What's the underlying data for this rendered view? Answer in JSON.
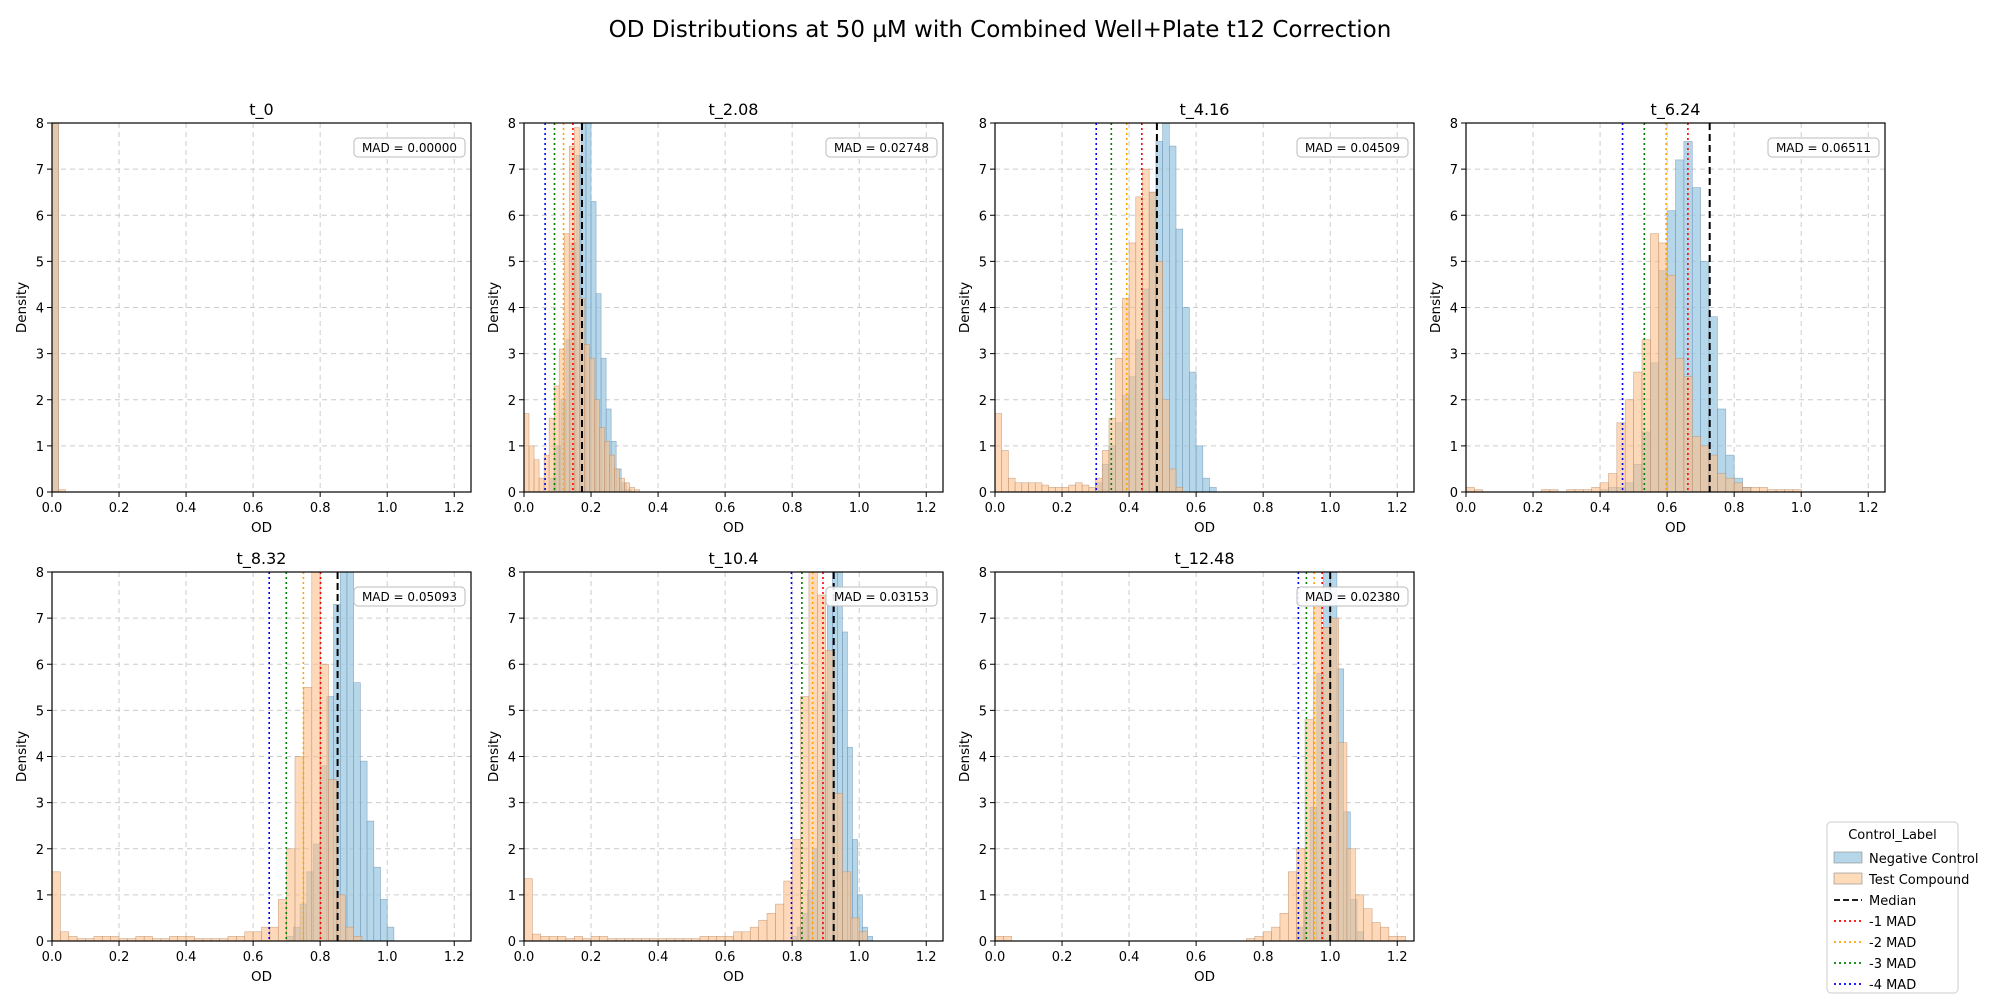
{
  "figure": {
    "title": "OD Distributions at 50 µM with Combined Well+Plate t12 Correction"
  },
  "legend": {
    "title": "Control_Label",
    "entries": [
      {
        "label": "Negative Control",
        "kind": "patch",
        "color": "#9ecae1"
      },
      {
        "label": "Test Compound",
        "kind": "patch",
        "color": "#fdd0a2"
      },
      {
        "label": "Median",
        "kind": "line",
        "color": "#000000",
        "dash": "dashed"
      },
      {
        "label": "-1 MAD",
        "kind": "line",
        "color": "#ff0000",
        "dash": "dotted"
      },
      {
        "label": "-2 MAD",
        "kind": "line",
        "color": "#ffa500",
        "dash": "dotted"
      },
      {
        "label": "-3 MAD",
        "kind": "line",
        "color": "#008000",
        "dash": "dotted"
      },
      {
        "label": "-4 MAD",
        "kind": "line",
        "color": "#0000ff",
        "dash": "dotted"
      }
    ]
  },
  "colors": {
    "negative_fill": "#9ecae1",
    "negative_edge": "#6a8fb0",
    "test_fill": "#fdbf8a",
    "test_edge": "#b98a66",
    "overlap": "#c2ab97",
    "grid": "#cccccc"
  },
  "chart_data": [
    {
      "type": "histogram",
      "title": "t_0",
      "xlabel": "OD",
      "ylabel": "Density",
      "xlim": [
        0,
        1.25
      ],
      "ylim": [
        0,
        8
      ],
      "grid": true,
      "xticks": [
        "0.0",
        "0.2",
        "0.4",
        "0.6",
        "0.8",
        "1.0",
        "1.2"
      ],
      "yticks": [
        "0",
        "1",
        "2",
        "3",
        "4",
        "5",
        "6",
        "7",
        "8"
      ],
      "mad_label": "MAD = 0.00000",
      "median": null,
      "mad_lines": [],
      "negative": {
        "bins": [
          [
            0.0,
            0.02,
            9.0
          ]
        ]
      },
      "test": {
        "bins": [
          [
            0.0,
            0.02,
            9.0
          ],
          [
            0.02,
            0.04,
            0.05
          ]
        ]
      }
    },
    {
      "type": "histogram",
      "title": "t_2.08",
      "xlabel": "OD",
      "ylabel": "Density",
      "xlim": [
        0,
        1.25
      ],
      "ylim": [
        0,
        8
      ],
      "grid": true,
      "xticks": [
        "0.0",
        "0.2",
        "0.4",
        "0.6",
        "0.8",
        "1.0",
        "1.2"
      ],
      "yticks": [
        "0",
        "1",
        "2",
        "3",
        "4",
        "5",
        "6",
        "7",
        "8"
      ],
      "mad_label": "MAD = 0.02748",
      "median": 0.173,
      "mad_lines": [
        0.146,
        0.118,
        0.091,
        0.063
      ],
      "negative": {
        "start": 0.08,
        "width": 0.015,
        "values": [
          0.3,
          1.0,
          2.0,
          3.3,
          5.4,
          7.3,
          8.0,
          8.0,
          6.3,
          4.3,
          2.9,
          1.8,
          1.1,
          0.5,
          0.2,
          0.05
        ]
      },
      "test": {
        "start": 0.0,
        "width": 0.015,
        "values": [
          1.7,
          1.0,
          0.7,
          0.3,
          0.8,
          1.6,
          2.3,
          3.1,
          5.6,
          7.5,
          7.9,
          4.2,
          3.2,
          2.9,
          2.0,
          1.4,
          1.1,
          0.8,
          0.5,
          0.3,
          0.2,
          0.1,
          0.05
        ]
      }
    },
    {
      "type": "histogram",
      "title": "t_4.16",
      "xlabel": "OD",
      "ylabel": "Density",
      "xlim": [
        0,
        1.25
      ],
      "ylim": [
        0,
        8
      ],
      "grid": true,
      "xticks": [
        "0.0",
        "0.2",
        "0.4",
        "0.6",
        "0.8",
        "1.0",
        "1.2"
      ],
      "yticks": [
        "0",
        "1",
        "2",
        "3",
        "4",
        "5",
        "6",
        "7",
        "8"
      ],
      "mad_label": "MAD = 0.04509",
      "median": 0.483,
      "mad_lines": [
        0.438,
        0.393,
        0.347,
        0.302
      ],
      "negative": {
        "start": 0.3,
        "width": 0.02,
        "values": [
          0.2,
          0.6,
          1.0,
          1.5,
          2.1,
          2.5,
          3.3,
          4.4,
          6.5,
          7.6,
          8.0,
          7.5,
          5.7,
          4.0,
          2.6,
          1.0,
          0.3,
          0.1
        ]
      },
      "test": {
        "start": 0.0,
        "width": 0.02,
        "values": [
          1.7,
          0.9,
          0.3,
          0.2,
          0.2,
          0.2,
          0.2,
          0.15,
          0.1,
          0.1,
          0.1,
          0.15,
          0.2,
          0.15,
          0.1,
          0.3,
          0.9,
          1.6,
          2.9,
          4.2,
          5.4,
          6.4,
          7.0,
          6.5,
          5.0,
          2.0,
          0.5,
          0.1
        ]
      }
    },
    {
      "type": "histogram",
      "title": "t_6.24",
      "xlabel": "OD",
      "ylabel": "Density",
      "xlim": [
        0,
        1.25
      ],
      "ylim": [
        0,
        8
      ],
      "grid": true,
      "xticks": [
        "0.0",
        "0.2",
        "0.4",
        "0.6",
        "0.8",
        "1.0",
        "1.2"
      ],
      "yticks": [
        "0",
        "1",
        "2",
        "3",
        "4",
        "5",
        "6",
        "7",
        "8"
      ],
      "mad_label": "MAD = 0.06511",
      "median": 0.727,
      "mad_lines": [
        0.662,
        0.597,
        0.532,
        0.467
      ],
      "negative": {
        "start": 0.4,
        "width": 0.025,
        "values": [
          0.05,
          0.1,
          0.1,
          0.2,
          0.6,
          1.3,
          2.8,
          4.8,
          6.1,
          7.2,
          7.6,
          6.6,
          5.0,
          3.8,
          1.8,
          0.8,
          0.3,
          0.1
        ]
      },
      "test": {
        "start": 0.0,
        "width": 0.025,
        "values": [
          0.1,
          0.05,
          0.0,
          0.0,
          0.0,
          0.0,
          0.0,
          0.0,
          0.0,
          0.05,
          0.05,
          0.0,
          0.05,
          0.05,
          0.05,
          0.1,
          0.2,
          0.4,
          1.5,
          2.0,
          2.6,
          3.3,
          5.6,
          5.4,
          4.7,
          2.9,
          2.5,
          1.2,
          1.0,
          0.8,
          0.4,
          0.3,
          0.2,
          0.1,
          0.1,
          0.1,
          0.05,
          0.05,
          0.05,
          0.05
        ]
      }
    },
    {
      "type": "histogram",
      "title": "t_8.32",
      "xlabel": "OD",
      "ylabel": "Density",
      "xlim": [
        0,
        1.25
      ],
      "ylim": [
        0,
        8
      ],
      "grid": true,
      "xticks": [
        "0.0",
        "0.2",
        "0.4",
        "0.6",
        "0.8",
        "1.0",
        "1.2"
      ],
      "yticks": [
        "0",
        "1",
        "2",
        "3",
        "4",
        "5",
        "6",
        "7",
        "8"
      ],
      "mad_label": "MAD = 0.05093",
      "median": 0.852,
      "mad_lines": [
        0.801,
        0.75,
        0.699,
        0.648
      ],
      "negative": {
        "start": 0.7,
        "width": 0.02,
        "values": [
          0.1,
          0.3,
          0.8,
          1.5,
          2.1,
          3.8,
          5.3,
          7.3,
          8.0,
          8.0,
          5.6,
          3.9,
          2.6,
          1.6,
          0.9,
          0.3
        ]
      },
      "test": {
        "start": 0.0,
        "width": 0.025,
        "values": [
          1.5,
          0.2,
          0.1,
          0.05,
          0.05,
          0.1,
          0.1,
          0.1,
          0.05,
          0.05,
          0.1,
          0.1,
          0.05,
          0.05,
          0.1,
          0.1,
          0.1,
          0.05,
          0.05,
          0.05,
          0.05,
          0.1,
          0.1,
          0.2,
          0.2,
          0.3,
          0.3,
          0.9,
          2.0,
          4.0,
          5.5,
          8.0,
          6.0,
          3.5,
          1.0,
          0.3,
          0.1
        ]
      }
    },
    {
      "type": "histogram",
      "title": "t_10.4",
      "xlabel": "OD",
      "ylabel": "Density",
      "xlim": [
        0,
        1.25
      ],
      "ylim": [
        0,
        8
      ],
      "grid": true,
      "xticks": [
        "0.0",
        "0.2",
        "0.4",
        "0.6",
        "0.8",
        "1.0",
        "1.2"
      ],
      "yticks": [
        "0",
        "1",
        "2",
        "3",
        "4",
        "5",
        "6",
        "7",
        "8"
      ],
      "mad_label": "MAD = 0.03153",
      "median": 0.924,
      "mad_lines": [
        0.892,
        0.861,
        0.829,
        0.798
      ],
      "negative": {
        "start": 0.8,
        "width": 0.015,
        "values": [
          0.1,
          0.3,
          0.6,
          1.1,
          2.0,
          3.7,
          5.4,
          7.4,
          8.0,
          8.0,
          6.7,
          4.2,
          2.2,
          1.0,
          0.3,
          0.1
        ]
      },
      "test": {
        "start": 0.0,
        "width": 0.025,
        "values": [
          1.35,
          0.15,
          0.1,
          0.1,
          0.1,
          0.05,
          0.1,
          0.05,
          0.1,
          0.1,
          0.05,
          0.05,
          0.05,
          0.05,
          0.05,
          0.05,
          0.05,
          0.05,
          0.05,
          0.05,
          0.05,
          0.1,
          0.1,
          0.1,
          0.1,
          0.2,
          0.2,
          0.3,
          0.45,
          0.6,
          0.8,
          1.3,
          2.2,
          5.3,
          8.0,
          7.5,
          6.3,
          3.2,
          1.5,
          0.5,
          0.2
        ]
      }
    },
    {
      "type": "histogram",
      "title": "t_12.48",
      "xlabel": "OD",
      "ylabel": "Density",
      "xlim": [
        0,
        1.25
      ],
      "ylim": [
        0,
        8
      ],
      "grid": true,
      "xticks": [
        "0.0",
        "0.2",
        "0.4",
        "0.6",
        "0.8",
        "1.0",
        "1.2"
      ],
      "yticks": [
        "0",
        "1",
        "2",
        "3",
        "4",
        "5",
        "6",
        "7",
        "8"
      ],
      "mad_label": "MAD = 0.02380",
      "median": 1.0,
      "mad_lines": [
        0.976,
        0.952,
        0.929,
        0.905
      ],
      "negative": {
        "start": 0.9,
        "width": 0.02,
        "values": [
          0.3,
          1.1,
          2.9,
          5.8,
          8.0,
          8.0,
          5.9,
          2.8,
          0.9,
          0.2
        ]
      },
      "test": {
        "start": 0.0,
        "width": 0.025,
        "values": [
          0.1,
          0.1,
          0.0,
          0.0,
          0.0,
          0.0,
          0.0,
          0.0,
          0.0,
          0.0,
          0.0,
          0.0,
          0.0,
          0.0,
          0.0,
          0.0,
          0.0,
          0.0,
          0.0,
          0.0,
          0.0,
          0.0,
          0.0,
          0.0,
          0.0,
          0.0,
          0.0,
          0.0,
          0.0,
          0.0,
          0.05,
          0.1,
          0.2,
          0.3,
          0.6,
          1.5,
          2.0,
          4.8,
          7.3,
          6.8,
          7.0,
          4.3,
          2.0,
          1.0,
          0.7,
          0.4,
          0.3,
          0.1,
          0.1
        ]
      }
    }
  ]
}
